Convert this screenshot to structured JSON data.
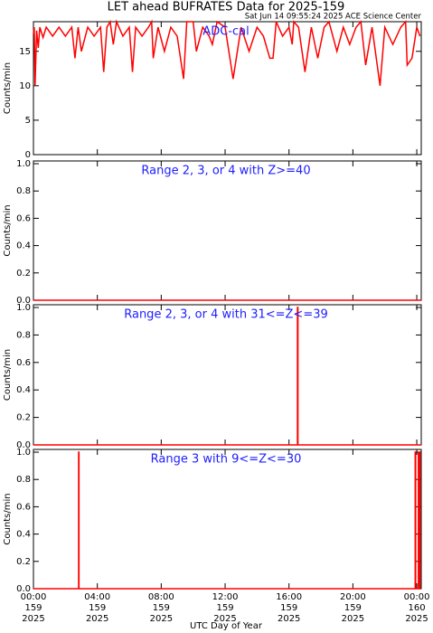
{
  "chart_data": [
    {
      "type": "line",
      "title": "LET ahead BUFRATES Data for 2025-159",
      "subtitle": "Sat Jun 14 09:55:24 2025 ACE Science Center",
      "annotation": "ADC-cal",
      "annotation_color": "#2020ff",
      "ylabel": "Counts/min",
      "color": "#ff0000",
      "xlim": [
        0,
        24.28
      ],
      "ylim": [
        0,
        19.3
      ],
      "yticks": [
        0,
        5,
        10,
        15
      ],
      "x": [
        0,
        0.05,
        0.1,
        0.2,
        0.3,
        0.4,
        0.6,
        0.8,
        1.2,
        1.6,
        2.0,
        2.4,
        2.6,
        2.8,
        3.0,
        3.4,
        3.8,
        4.2,
        4.4,
        4.6,
        4.8,
        5.0,
        5.2,
        5.6,
        6.0,
        6.2,
        6.4,
        6.8,
        7.2,
        7.4,
        7.5,
        7.8,
        8.2,
        8.6,
        9.0,
        9.4,
        9.6,
        10.0,
        10.2,
        10.6,
        11.0,
        11.2,
        11.5,
        12.0,
        12.5,
        13.0,
        13.5,
        14.0,
        14.4,
        14.8,
        15.0,
        15.2,
        15.6,
        16.0,
        16.2,
        16.3,
        16.6,
        17.0,
        17.4,
        17.8,
        18.2,
        18.5,
        19.0,
        19.4,
        19.8,
        20.2,
        20.5,
        20.8,
        21.2,
        21.7,
        22.0,
        22.5,
        23.0,
        23.3,
        23.4,
        23.7,
        24.0,
        24.2
      ],
      "values": [
        17.5,
        18.5,
        10,
        18,
        15.5,
        18.5,
        17,
        18.5,
        17.2,
        18.5,
        17.2,
        18.5,
        14,
        18.5,
        15,
        18.5,
        17.2,
        18.5,
        12,
        18.5,
        19.3,
        16,
        19.3,
        17.2,
        18.5,
        12,
        18.5,
        17.2,
        18.5,
        19.3,
        14,
        18.5,
        15,
        18.5,
        17.2,
        11,
        19.3,
        19.3,
        15,
        18.5,
        17.2,
        16,
        19.3,
        18.5,
        11,
        18.5,
        15,
        18.5,
        17.2,
        14,
        14,
        19.3,
        17.2,
        18.5,
        16,
        19.3,
        18.5,
        12,
        18.5,
        14,
        18.5,
        19.3,
        15,
        18.5,
        16,
        18.5,
        19.3,
        13,
        18.5,
        10,
        18.5,
        16,
        18.5,
        19.3,
        13,
        14,
        18.5,
        17.2
      ]
    },
    {
      "type": "line",
      "annotation": "Range 2, 3, or 4 with Z>=40",
      "annotation_color": "#2020ff",
      "ylabel": "Counts/min",
      "color": "#ff0000",
      "xlim": [
        0,
        24.28
      ],
      "ylim": [
        0,
        1.02
      ],
      "yticks": [
        {
          "value": 0,
          "label": "0.0"
        },
        {
          "value": 0.2,
          "label": "0.2"
        },
        {
          "value": 0.4,
          "label": "0.4"
        },
        {
          "value": 0.6,
          "label": "0.6"
        },
        {
          "value": 0.8,
          "label": "0.8"
        },
        {
          "value": 1,
          "label": "1.0"
        }
      ],
      "x": [
        0,
        24.28
      ],
      "values": [
        0,
        0
      ]
    },
    {
      "type": "line",
      "annotation": "Range 2, 3, or 4 with 31<=Z<=39",
      "annotation_color": "#2020ff",
      "ylabel": "Counts/min",
      "color": "#ff0000",
      "xlim": [
        0,
        24.28
      ],
      "ylim": [
        0,
        1.02
      ],
      "yticks": [
        {
          "value": 0,
          "label": "0.0"
        },
        {
          "value": 0.2,
          "label": "0.2"
        },
        {
          "value": 0.4,
          "label": "0.4"
        },
        {
          "value": 0.6,
          "label": "0.6"
        },
        {
          "value": 0.8,
          "label": "0.8"
        },
        {
          "value": 1,
          "label": "1.0"
        }
      ],
      "x": [
        0,
        16.53,
        16.53,
        16.56,
        16.56,
        24.28
      ],
      "values": [
        0,
        0,
        1,
        1,
        0,
        0
      ]
    },
    {
      "type": "line",
      "annotation": "Range 3 with 9<=Z<=30",
      "annotation_color": "#2020ff",
      "ylabel": "Counts/min",
      "color": "#ff0000",
      "xlabel": "UTC Day of Year",
      "xlim": [
        0,
        24.28
      ],
      "ylim": [
        0,
        1.02
      ],
      "yticks": [
        {
          "value": 0,
          "label": "0.0"
        },
        {
          "value": 0.2,
          "label": "0.2"
        },
        {
          "value": 0.4,
          "label": "0.4"
        },
        {
          "value": 0.6,
          "label": "0.6"
        },
        {
          "value": 0.8,
          "label": "0.8"
        },
        {
          "value": 1,
          "label": "1.0"
        }
      ],
      "xticks": [
        {
          "value": 0,
          "label": "00:00"
        },
        {
          "value": 4,
          "label": "04:00"
        },
        {
          "value": 8,
          "label": "08:00"
        },
        {
          "value": 12,
          "label": "12:00"
        },
        {
          "value": 16,
          "label": "16:00"
        },
        {
          "value": 20,
          "label": "20:00"
        },
        {
          "value": 24,
          "label": "00:00"
        }
      ],
      "xtick_days": [
        "159",
        "159",
        "159",
        "159",
        "159",
        "159",
        "160"
      ],
      "xtick_years": [
        "2025",
        "2025",
        "2025",
        "2025",
        "2025",
        "2025",
        "2025"
      ],
      "x": [
        0,
        2.83,
        2.83,
        2.85,
        2.85,
        23.9,
        23.9,
        23.93,
        23.93,
        24.1,
        24.1,
        24.13,
        24.13,
        24.2,
        24.2,
        24.23
      ],
      "values": [
        0,
        0,
        1,
        1,
        0,
        0,
        1,
        1,
        0,
        0,
        1,
        1,
        0,
        0,
        1,
        1
      ]
    }
  ]
}
